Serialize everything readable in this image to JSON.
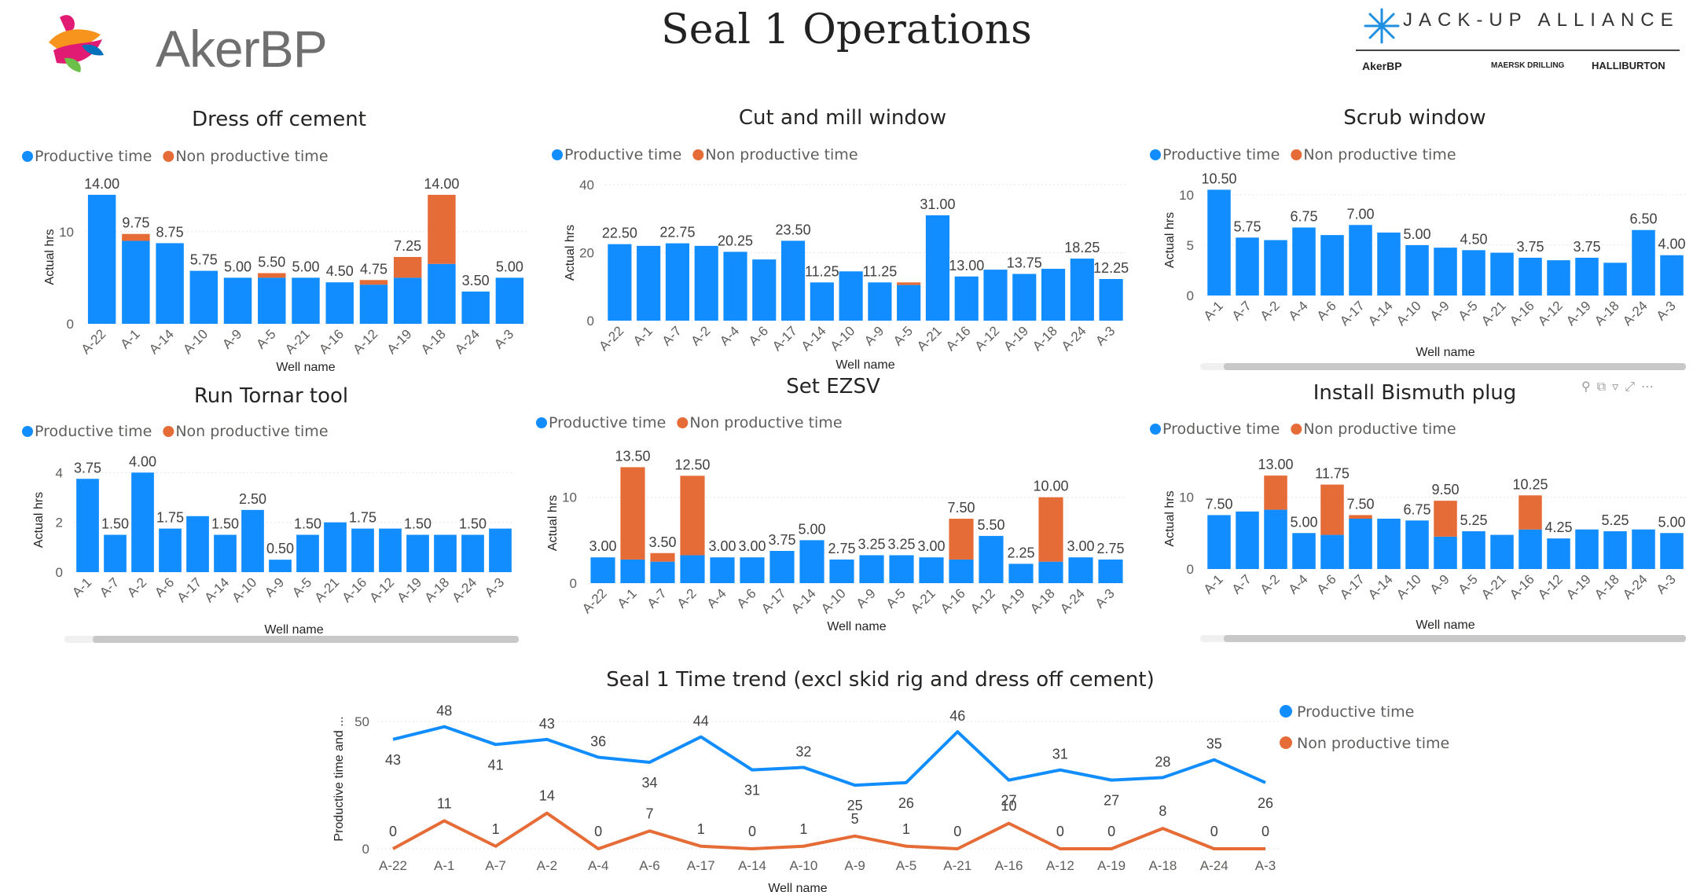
{
  "page": {
    "title": "Seal 1 Operations",
    "logo_text": "AkerBP",
    "alliance_title": "JACK-UP ALLIANCE",
    "partners": [
      "AkerBP",
      "MAERSK DRILLING",
      "HALLIBURTON"
    ]
  },
  "colors": {
    "productive": "#118DFF",
    "non_productive": "#E66C37",
    "logo_colors": [
      "#E11B74",
      "#F7941D",
      "#6CC04A",
      "#0072BC"
    ]
  },
  "visual_header_icons": [
    "pin-icon",
    "copy-icon",
    "filter-icon",
    "expand-icon",
    "more-options-icon"
  ],
  "chart_data": [
    {
      "id": "dress-off-cement",
      "type": "bar",
      "stacked": true,
      "title": "Dress off cement",
      "legend": [
        "Productive time",
        "Non productive time"
      ],
      "legend_position": "top-left",
      "xlabel": "Well name",
      "ylabel": "Actual hrs",
      "ylim": [
        0,
        14.5
      ],
      "yticks": [
        0,
        10
      ],
      "categories": [
        "A-22",
        "A-1",
        "A-14",
        "A-10",
        "A-9",
        "A-5",
        "A-21",
        "A-16",
        "A-12",
        "A-19",
        "A-18",
        "A-24",
        "A-3"
      ],
      "series": [
        {
          "name": "Productive time",
          "values": [
            14.0,
            9.0,
            8.75,
            5.75,
            5.0,
            5.0,
            5.0,
            4.5,
            4.25,
            5.0,
            6.5,
            3.5,
            5.0
          ]
        },
        {
          "name": "Non productive time",
          "values": [
            0,
            0.75,
            0,
            0,
            0,
            0.5,
            0,
            0,
            0.5,
            2.25,
            7.5,
            0,
            0
          ]
        }
      ],
      "totals": [
        "14.00",
        "9.75",
        "8.75",
        "5.75",
        "5.00",
        "5.50",
        "5.00",
        "4.50",
        "4.75",
        "7.25",
        "14.00",
        "3.50",
        "5.00"
      ]
    },
    {
      "id": "cut-and-mill-window",
      "type": "bar",
      "stacked": true,
      "title": "Cut and mill window",
      "legend": [
        "Productive time",
        "Non productive time"
      ],
      "legend_position": "top-left",
      "xlabel": "Well name",
      "ylabel": "Actual hrs",
      "ylim": [
        0,
        40
      ],
      "yticks": [
        0,
        20,
        40
      ],
      "categories": [
        "A-22",
        "A-1",
        "A-7",
        "A-2",
        "A-4",
        "A-6",
        "A-17",
        "A-14",
        "A-10",
        "A-9",
        "A-5",
        "A-21",
        "A-16",
        "A-12",
        "A-19",
        "A-18",
        "A-24",
        "A-3"
      ],
      "series": [
        {
          "name": "Productive time",
          "values": [
            22.5,
            22.0,
            22.75,
            22.0,
            20.25,
            18.0,
            23.5,
            11.25,
            14.5,
            11.25,
            10.5,
            31.0,
            13.0,
            15.0,
            13.75,
            15.25,
            18.25,
            12.25
          ]
        },
        {
          "name": "Non productive time",
          "values": [
            0,
            0,
            0,
            0,
            0,
            0,
            0,
            0,
            0,
            0,
            0.75,
            0,
            0,
            0,
            0,
            0,
            0,
            0
          ]
        }
      ],
      "totals": [
        "22.50",
        "",
        "22.75",
        "",
        "20.25",
        "",
        "23.50",
        "11.25",
        "",
        "11.25",
        "",
        "31.00",
        "13.00",
        "",
        "13.75",
        "",
        "18.25",
        "12.25"
      ]
    },
    {
      "id": "scrub-window",
      "type": "bar",
      "stacked": true,
      "title": "Scrub window",
      "legend": [
        "Productive time",
        "Non productive time"
      ],
      "legend_position": "top-left",
      "xlabel": "Well name",
      "ylabel": "Actual hrs",
      "ylim": [
        0,
        11
      ],
      "yticks": [
        0,
        5,
        10
      ],
      "categories": [
        "A-1",
        "A-7",
        "A-2",
        "A-4",
        "A-6",
        "A-17",
        "A-14",
        "A-10",
        "A-9",
        "A-5",
        "A-21",
        "A-16",
        "A-12",
        "A-19",
        "A-18",
        "A-24",
        "A-3"
      ],
      "series": [
        {
          "name": "Productive time",
          "values": [
            10.5,
            5.75,
            5.5,
            6.75,
            6.0,
            7.0,
            6.25,
            5.0,
            4.75,
            4.5,
            4.25,
            3.75,
            3.5,
            3.75,
            3.25,
            6.5,
            4.0
          ]
        },
        {
          "name": "Non productive time",
          "values": [
            0,
            0,
            0,
            0,
            0,
            0,
            0,
            0,
            0,
            0,
            0,
            0,
            0,
            0,
            0,
            0,
            0
          ]
        }
      ],
      "totals": [
        "10.50",
        "5.75",
        "",
        "6.75",
        "",
        "7.00",
        "",
        "5.00",
        "",
        "4.50",
        "",
        "3.75",
        "",
        "3.75",
        "",
        "6.50",
        "4.00"
      ]
    },
    {
      "id": "run-tornar-tool",
      "type": "bar",
      "stacked": true,
      "title": "Run Tornar tool",
      "legend": [
        "Productive time",
        "Non productive time"
      ],
      "legend_position": "top-left",
      "xlabel": "Well name",
      "ylabel": "Actual hrs",
      "ylim": [
        0,
        4.2
      ],
      "yticks": [
        0,
        2,
        4
      ],
      "categories": [
        "A-1",
        "A-7",
        "A-2",
        "A-6",
        "A-17",
        "A-14",
        "A-10",
        "A-9",
        "A-5",
        "A-21",
        "A-16",
        "A-12",
        "A-19",
        "A-18",
        "A-24",
        "A-3"
      ],
      "series": [
        {
          "name": "Productive time",
          "values": [
            3.75,
            1.5,
            4.0,
            1.75,
            2.25,
            1.5,
            2.5,
            0.5,
            1.5,
            2.0,
            1.75,
            1.75,
            1.5,
            1.5,
            1.5,
            1.75
          ]
        },
        {
          "name": "Non productive time",
          "values": [
            0,
            0,
            0,
            0,
            0,
            0,
            0,
            0,
            0,
            0,
            0,
            0,
            0,
            0,
            0,
            0
          ]
        }
      ],
      "totals": [
        "3.75",
        "1.50",
        "4.00",
        "1.75",
        "",
        "1.50",
        "2.50",
        "0.50",
        "1.50",
        "",
        "1.75",
        "",
        "1.50",
        "",
        "1.50",
        ""
      ]
    },
    {
      "id": "set-ezsv",
      "type": "bar",
      "stacked": true,
      "title": "Set EZSV",
      "legend": [
        "Productive time",
        "Non productive time"
      ],
      "legend_position": "top-left",
      "xlabel": "Well name",
      "ylabel": "Actual hrs",
      "ylim": [
        0,
        14
      ],
      "yticks": [
        0,
        10
      ],
      "categories": [
        "A-22",
        "A-1",
        "A-7",
        "A-2",
        "A-4",
        "A-6",
        "A-17",
        "A-14",
        "A-10",
        "A-9",
        "A-5",
        "A-21",
        "A-16",
        "A-12",
        "A-19",
        "A-18",
        "A-24",
        "A-3"
      ],
      "series": [
        {
          "name": "Productive time",
          "values": [
            3.0,
            2.75,
            2.5,
            3.25,
            3.0,
            3.0,
            3.75,
            5.0,
            2.75,
            3.25,
            3.25,
            3.0,
            2.75,
            5.5,
            2.25,
            2.5,
            3.0,
            2.75
          ]
        },
        {
          "name": "Non productive time",
          "values": [
            0,
            10.75,
            1.0,
            9.25,
            0,
            0,
            0,
            0,
            0,
            0,
            0,
            0,
            4.75,
            0,
            0,
            7.5,
            0,
            0
          ]
        }
      ],
      "totals": [
        "3.00",
        "13.50",
        "3.50",
        "12.50",
        "3.00",
        "3.00",
        "3.75",
        "5.00",
        "2.75",
        "3.25",
        "3.25",
        "3.00",
        "7.50",
        "5.50",
        "2.25",
        "10.00",
        "3.00",
        "2.75"
      ]
    },
    {
      "id": "install-bismuth-plug",
      "type": "bar",
      "stacked": true,
      "title": "Install Bismuth plug",
      "legend": [
        "Productive time",
        "Non productive time"
      ],
      "legend_position": "top-left",
      "xlabel": "Well name",
      "ylabel": "Actual hrs",
      "ylim": [
        0,
        14
      ],
      "yticks": [
        0,
        10
      ],
      "categories": [
        "A-1",
        "A-7",
        "A-2",
        "A-4",
        "A-6",
        "A-17",
        "A-14",
        "A-10",
        "A-9",
        "A-5",
        "A-21",
        "A-16",
        "A-12",
        "A-19",
        "A-18",
        "A-24",
        "A-3"
      ],
      "series": [
        {
          "name": "Productive time",
          "values": [
            7.5,
            8.0,
            8.25,
            5.0,
            4.75,
            7.0,
            7.0,
            6.75,
            4.5,
            5.25,
            4.75,
            5.5,
            4.25,
            5.5,
            5.25,
            5.5,
            5.0
          ]
        },
        {
          "name": "Non productive time",
          "values": [
            0,
            0,
            4.75,
            0,
            7.0,
            0.5,
            0,
            0,
            5.0,
            0,
            0,
            4.75,
            0,
            0,
            0,
            0,
            0
          ]
        }
      ],
      "totals": [
        "7.50",
        "",
        "13.00",
        "5.00",
        "11.75",
        "7.50",
        "",
        "6.75",
        "9.50",
        "5.25",
        "",
        "10.25",
        "4.25",
        "",
        "5.25",
        "",
        "5.00"
      ]
    },
    {
      "id": "seal-1-time-trend",
      "type": "line",
      "title": "Seal 1 Time trend (excl skid rig and dress off cement)",
      "legend": [
        "Productive time",
        "Non productive time"
      ],
      "legend_position": "right",
      "xlabel": "Well name",
      "ylabel": "Productive time and ...",
      "ylim": [
        0,
        55
      ],
      "yticks": [
        0,
        50
      ],
      "categories": [
        "A-22",
        "A-1",
        "A-7",
        "A-2",
        "A-4",
        "A-6",
        "A-17",
        "A-14",
        "A-10",
        "A-9",
        "A-5",
        "A-21",
        "A-16",
        "A-12",
        "A-19",
        "A-18",
        "A-24",
        "A-3"
      ],
      "series": [
        {
          "name": "Productive time",
          "values": [
            43,
            48,
            41,
            43,
            36,
            34,
            44,
            31,
            32,
            25,
            26,
            46,
            27,
            31,
            27,
            28,
            35,
            26
          ],
          "labels_above": [
            false,
            true,
            false,
            true,
            true,
            false,
            true,
            false,
            true,
            false,
            false,
            true,
            false,
            true,
            false,
            true,
            true,
            false
          ]
        },
        {
          "name": "Non productive time",
          "values": [
            0,
            11,
            1,
            14,
            0,
            7,
            1,
            0,
            1,
            5,
            1,
            0,
            10,
            0,
            0,
            8,
            0,
            0
          ]
        }
      ]
    }
  ]
}
